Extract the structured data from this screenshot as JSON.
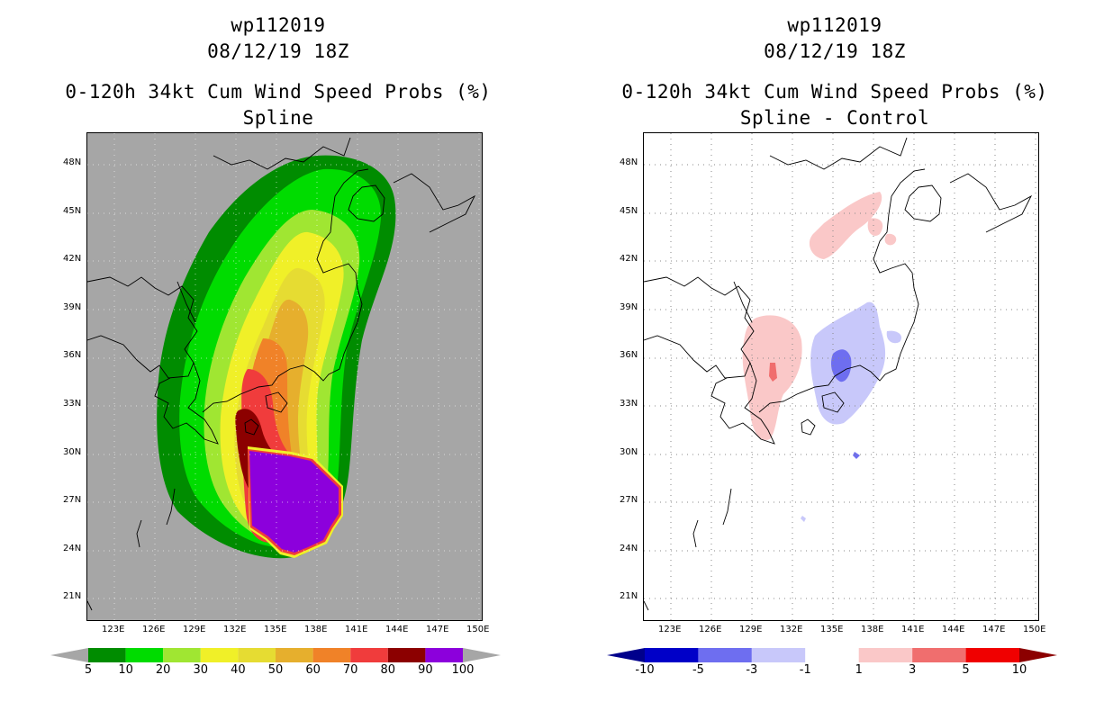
{
  "panels": [
    {
      "id": "left",
      "storm_id": "wp112019",
      "datetime": "08/12/19 18Z",
      "product": "0-120h 34kt Cum Wind Speed Probs (%)",
      "subtitle": "Spline"
    },
    {
      "id": "right",
      "storm_id": "wp112019",
      "datetime": "08/12/19 18Z",
      "product": "0-120h 34kt Cum Wind Speed Probs (%)",
      "subtitle": "Spline - Control"
    }
  ],
  "axes": {
    "lon_labels": [
      "123E",
      "126E",
      "129E",
      "132E",
      "135E",
      "138E",
      "141E",
      "144E",
      "147E",
      "150E"
    ],
    "lat_labels": [
      "48N",
      "45N",
      "42N",
      "39N",
      "36N",
      "33N",
      "30N",
      "27N",
      "24N",
      "21N"
    ],
    "lon_range": [
      121.5,
      151
    ],
    "lat_range": [
      19.5,
      49.5
    ]
  },
  "colorbars": {
    "probability": {
      "labels": [
        "5",
        "10",
        "20",
        "30",
        "40",
        "50",
        "60",
        "70",
        "80",
        "90",
        "100"
      ],
      "colors": [
        "#008c00",
        "#00dc00",
        "#a0e632",
        "#f0f028",
        "#e6dc32",
        "#e6af2d",
        "#f08228",
        "#f03c3c",
        "#8c0000",
        "#8c00dc"
      ],
      "under_color": "#a6a6a6",
      "over_color": "#a6a6a6"
    },
    "difference": {
      "labels": [
        "-10",
        "-5",
        "-3",
        "-1",
        "1",
        "3",
        "5",
        "10"
      ],
      "colors": [
        "#0000c8",
        "#6e6ef0",
        "#c8c8fa",
        "#ffffff",
        "#fac8c8",
        "#f06e6e",
        "#f00000"
      ],
      "under_color": "#00008c",
      "over_color": "#8c0000"
    }
  }
}
